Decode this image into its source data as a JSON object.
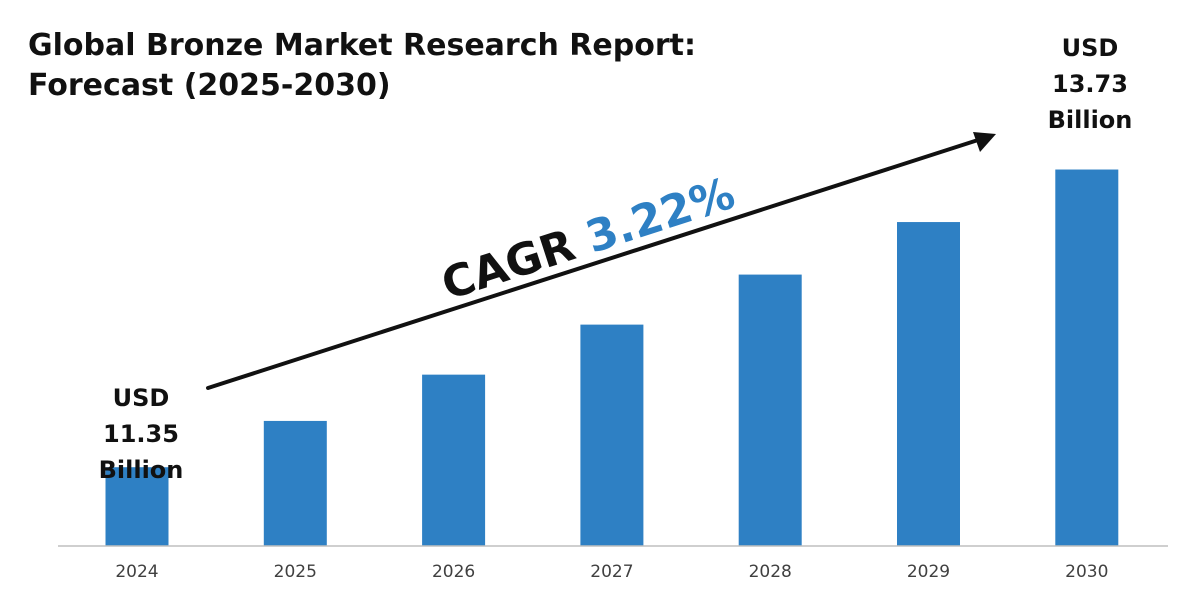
{
  "title": "Global Bronze Market Research Report:",
  "subtitle": "Forecast (2025-2030)",
  "chart_data": {
    "type": "bar",
    "categories": [
      "2024",
      "2025",
      "2026",
      "2027",
      "2028",
      "2029",
      "2030"
    ],
    "values": [
      11.35,
      11.72,
      12.09,
      12.49,
      12.89,
      13.31,
      13.73
    ],
    "start_label": [
      "USD",
      "11.35",
      "Billion"
    ],
    "end_label": [
      "USD",
      "13.73",
      "Billion"
    ],
    "cagr_text": "CAGR",
    "cagr_value": "3.22%",
    "ylim": [
      10.72,
      14.03
    ],
    "grid": false,
    "legend": "none"
  },
  "colors": {
    "bar": "#2e80c4",
    "cagr_value": "#2e80c4",
    "text": "#111111",
    "tick": "#404040",
    "axis": "#bfbfbf",
    "arrow": "#111111"
  }
}
